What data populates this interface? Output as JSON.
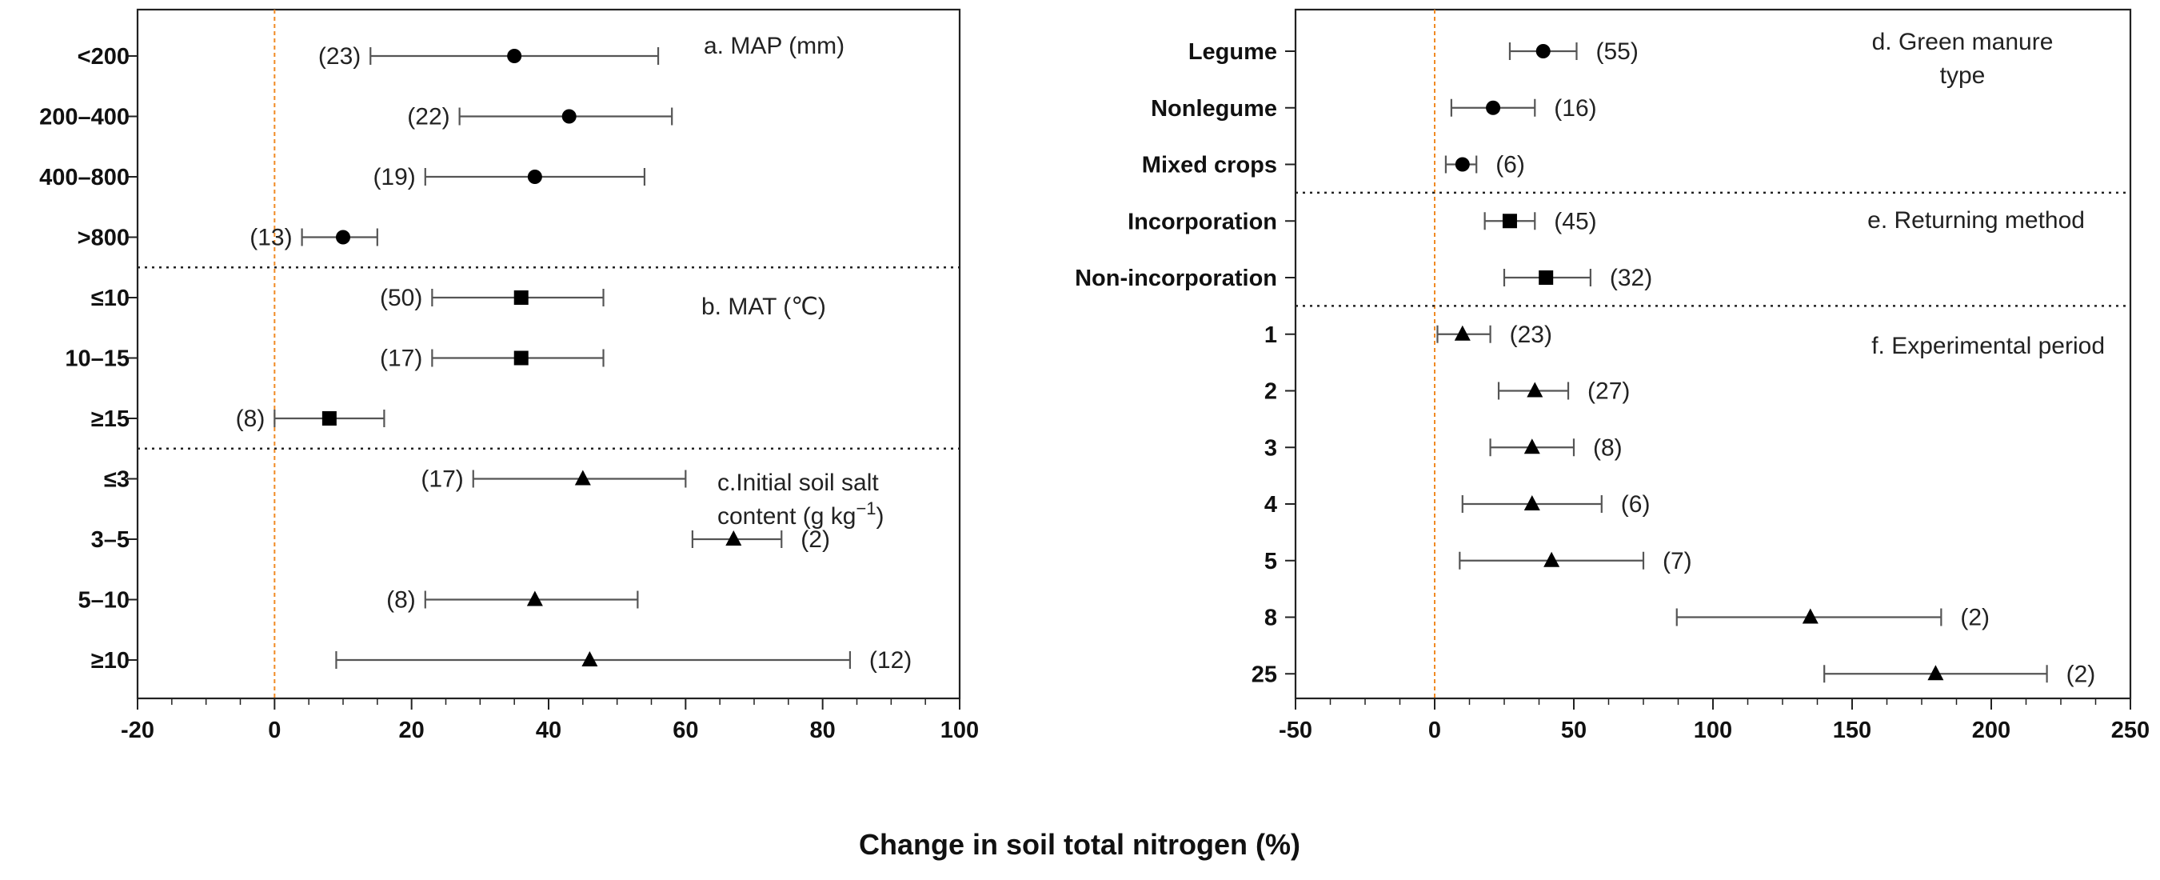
{
  "xlabel": "Change in soil total nitrogen  (%)",
  "chart_data": [
    {
      "type": "scatter",
      "subtype": "forest-plot",
      "xlim": [
        -20,
        100
      ],
      "xticks": [
        "-20",
        "0",
        "20",
        "40",
        "60",
        "80",
        "100"
      ],
      "reference_line_x": 0,
      "groups": [
        {
          "label": "a. MAP (mm)",
          "marker": "circle",
          "rows": [
            {
              "category": "<200",
              "mean": 35,
              "ci_low": 14,
              "ci_high": 56,
              "n": "(23)"
            },
            {
              "category": "200–400",
              "mean": 43,
              "ci_low": 27,
              "ci_high": 58,
              "n": "(22)"
            },
            {
              "category": "400–800",
              "mean": 38,
              "ci_low": 22,
              "ci_high": 54,
              "n": "(19)"
            },
            {
              "category": ">800",
              "mean": 10,
              "ci_low": 4,
              "ci_high": 15,
              "n": "(13)"
            }
          ]
        },
        {
          "label": "b. MAT  (℃)",
          "marker": "square",
          "rows": [
            {
              "category": "≤10",
              "mean": 36,
              "ci_low": 23,
              "ci_high": 48,
              "n": "(50)"
            },
            {
              "category": "10–15",
              "mean": 36,
              "ci_low": 23,
              "ci_high": 48,
              "n": "(17)"
            },
            {
              "category": "≥15",
              "mean": 8,
              "ci_low": 0,
              "ci_high": 16,
              "n": "(8)"
            }
          ]
        },
        {
          "label_lines": [
            "c.Initial soil salt",
            "content  (g kg",
            "−1",
            ")"
          ],
          "marker": "triangle",
          "rows": [
            {
              "category": "≤3",
              "mean": 45,
              "ci_low": 29,
              "ci_high": 60,
              "n": "(17)"
            },
            {
              "category": "3–5",
              "mean": 67,
              "ci_low": 61,
              "ci_high": 74,
              "n": "(2)"
            },
            {
              "category": "5–10",
              "mean": 38,
              "ci_low": 22,
              "ci_high": 53,
              "n": "(8)"
            },
            {
              "category": "≥10",
              "mean": 46,
              "ci_low": 9,
              "ci_high": 84,
              "n": "(12)"
            }
          ]
        }
      ]
    },
    {
      "type": "scatter",
      "subtype": "forest-plot",
      "xlim": [
        -50,
        250
      ],
      "xticks": [
        "-50",
        "0",
        "50",
        "100",
        "150",
        "200",
        "250"
      ],
      "reference_line_x": 0,
      "groups": [
        {
          "label_lines": [
            "d. Green manure",
            "type"
          ],
          "marker": "circle",
          "rows": [
            {
              "category": "Legume",
              "mean": 39,
              "ci_low": 27,
              "ci_high": 51,
              "n": "(55)"
            },
            {
              "category": "Nonlegume",
              "mean": 21,
              "ci_low": 6,
              "ci_high": 36,
              "n": "(16)"
            },
            {
              "category": "Mixed crops",
              "mean": 10,
              "ci_low": 4,
              "ci_high": 15,
              "n": "(6)"
            }
          ]
        },
        {
          "label": "e. Returning method",
          "marker": "square",
          "rows": [
            {
              "category": "Incorporation",
              "mean": 27,
              "ci_low": 18,
              "ci_high": 36,
              "n": "(45)"
            },
            {
              "category": "Non-incorporation",
              "mean": 40,
              "ci_low": 25,
              "ci_high": 56,
              "n": "(32)"
            }
          ]
        },
        {
          "label": "f. Experimental period",
          "marker": "triangle",
          "rows": [
            {
              "category": "1",
              "mean": 10,
              "ci_low": 1,
              "ci_high": 20,
              "n": "(23)"
            },
            {
              "category": "2",
              "mean": 36,
              "ci_low": 23,
              "ci_high": 48,
              "n": "(27)"
            },
            {
              "category": "3",
              "mean": 35,
              "ci_low": 20,
              "ci_high": 50,
              "n": "(8)"
            },
            {
              "category": "4",
              "mean": 35,
              "ci_low": 10,
              "ci_high": 60,
              "n": "(6)"
            },
            {
              "category": "5",
              "mean": 42,
              "ci_low": 9,
              "ci_high": 75,
              "n": "(7)"
            },
            {
              "category": "8",
              "mean": 135,
              "ci_low": 87,
              "ci_high": 182,
              "n": "(2)"
            },
            {
              "category": "25",
              "mean": 180,
              "ci_low": 140,
              "ci_high": 220,
              "n": "(2)"
            }
          ]
        }
      ]
    }
  ]
}
